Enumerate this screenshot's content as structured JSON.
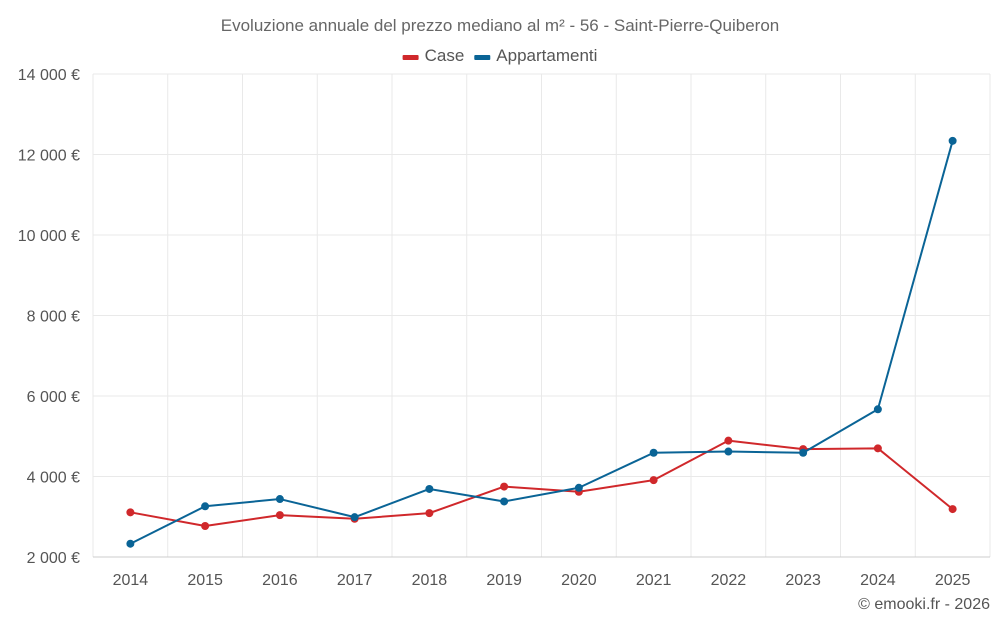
{
  "chart_data": {
    "type": "line",
    "title": "Evoluzione annuale del prezzo mediano al m² - 56 - Saint-Pierre-Quiberon",
    "xlabel": "",
    "ylabel": "",
    "categories": [
      "2014",
      "2015",
      "2016",
      "2017",
      "2018",
      "2019",
      "2020",
      "2021",
      "2022",
      "2023",
      "2024",
      "2025"
    ],
    "ylim": [
      2000,
      14000
    ],
    "yticks": [
      2000,
      4000,
      6000,
      8000,
      10000,
      12000,
      14000
    ],
    "ytick_labels": [
      "2 000 €",
      "4 000 €",
      "6 000 €",
      "8 000 €",
      "10 000 €",
      "12 000 €",
      "14 000 €"
    ],
    "grid": true,
    "legend_position": "top-center",
    "series": [
      {
        "name": "Case",
        "color": "#d0282b",
        "values": [
          3110,
          2770,
          3040,
          2950,
          3090,
          3750,
          3620,
          3910,
          4890,
          4680,
          4700,
          3190
        ]
      },
      {
        "name": "Appartamenti",
        "color": "#0a6496",
        "values": [
          2330,
          3260,
          3440,
          2990,
          3690,
          3380,
          3720,
          4590,
          4620,
          4590,
          5670,
          12340
        ]
      }
    ]
  },
  "credit": "© emooki.fr - 2026"
}
